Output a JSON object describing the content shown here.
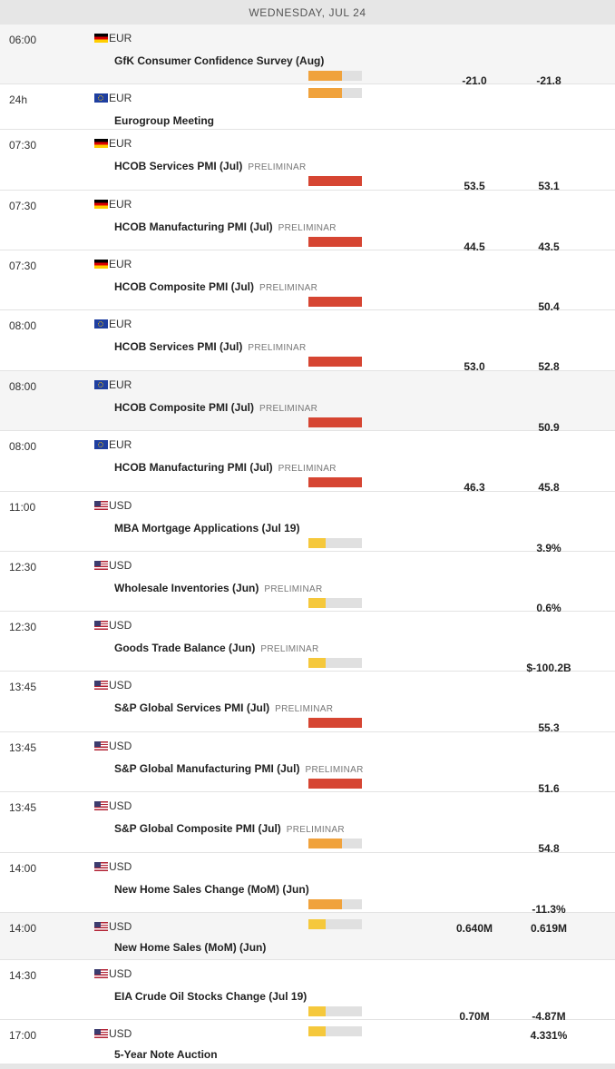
{
  "header": {
    "date": "WEDNESDAY, JUL 24"
  },
  "colors": {
    "low": "#f5c83c",
    "medium": "#f0a23c",
    "high": "#d64532",
    "track": "#e0e0e0"
  },
  "events": [
    {
      "time": "06:00",
      "flag": "de-flag-icon",
      "currency": "EUR",
      "title": "GfK Consumer Confidence Survey (Aug)",
      "tag": "",
      "impact": "medium",
      "actual": "",
      "forecast": "-21.0",
      "previous": "-21.8"
    },
    {
      "time": "24h",
      "flag": "eu-flag-icon",
      "currency": "EUR",
      "title": "Eurogroup Meeting",
      "tag": "",
      "impact": "medium",
      "actual": "",
      "forecast": "",
      "previous": ""
    },
    {
      "time": "07:30",
      "flag": "de-flag-icon",
      "currency": "EUR",
      "title": "HCOB Services PMI (Jul)",
      "tag": "PRELIMINAR",
      "impact": "high",
      "actual": "",
      "forecast": "53.5",
      "previous": "53.1"
    },
    {
      "time": "07:30",
      "flag": "de-flag-icon",
      "currency": "EUR",
      "title": "HCOB Manufacturing PMI (Jul)",
      "tag": "PRELIMINAR",
      "impact": "high",
      "actual": "",
      "forecast": "44.5",
      "previous": "43.5"
    },
    {
      "time": "07:30",
      "flag": "de-flag-icon",
      "currency": "EUR",
      "title": "HCOB Composite PMI (Jul)",
      "tag": "PRELIMINAR",
      "impact": "high",
      "actual": "",
      "forecast": "",
      "previous": "50.4"
    },
    {
      "time": "08:00",
      "flag": "eu-flag-icon",
      "currency": "EUR",
      "title": "HCOB Services PMI (Jul)",
      "tag": "PRELIMINAR",
      "impact": "high",
      "actual": "",
      "forecast": "53.0",
      "previous": "52.8"
    },
    {
      "time": "08:00",
      "flag": "eu-flag-icon",
      "currency": "EUR",
      "title": "HCOB Composite PMI (Jul)",
      "tag": "PRELIMINAR",
      "impact": "high",
      "actual": "",
      "forecast": "",
      "previous": "50.9"
    },
    {
      "time": "08:00",
      "flag": "eu-flag-icon",
      "currency": "EUR",
      "title": "HCOB Manufacturing PMI (Jul)",
      "tag": "PRELIMINAR",
      "impact": "high",
      "actual": "",
      "forecast": "46.3",
      "previous": "45.8"
    },
    {
      "time": "11:00",
      "flag": "us-flag-icon",
      "currency": "USD",
      "title": "MBA Mortgage Applications (Jul 19)",
      "tag": "",
      "impact": "low",
      "actual": "",
      "forecast": "",
      "previous": "3.9%"
    },
    {
      "time": "12:30",
      "flag": "us-flag-icon",
      "currency": "USD",
      "title": "Wholesale Inventories (Jun)",
      "tag": "PRELIMINAR",
      "impact": "low",
      "actual": "",
      "forecast": "",
      "previous": "0.6%"
    },
    {
      "time": "12:30",
      "flag": "us-flag-icon",
      "currency": "USD",
      "title": "Goods Trade Balance (Jun)",
      "tag": "PRELIMINAR",
      "impact": "low",
      "actual": "",
      "forecast": "",
      "previous": "$-100.2B"
    },
    {
      "time": "13:45",
      "flag": "us-flag-icon",
      "currency": "USD",
      "title": "S&P Global Services PMI (Jul)",
      "tag": "PRELIMINAR",
      "impact": "high",
      "actual": "",
      "forecast": "",
      "previous": "55.3"
    },
    {
      "time": "13:45",
      "flag": "us-flag-icon",
      "currency": "USD",
      "title": "S&P Global Manufacturing PMI (Jul)",
      "tag": "PRELIMINAR",
      "impact": "high",
      "actual": "",
      "forecast": "",
      "previous": "51.6"
    },
    {
      "time": "13:45",
      "flag": "us-flag-icon",
      "currency": "USD",
      "title": "S&P Global Composite PMI (Jul)",
      "tag": "PRELIMINAR",
      "impact": "medium",
      "actual": "",
      "forecast": "",
      "previous": "54.8"
    },
    {
      "time": "14:00",
      "flag": "us-flag-icon",
      "currency": "USD",
      "title": "New Home Sales Change (MoM) (Jun)",
      "tag": "",
      "impact": "medium",
      "actual": "",
      "forecast": "",
      "previous": "-11.3%"
    },
    {
      "time": "14:00",
      "flag": "us-flag-icon",
      "currency": "USD",
      "title": "New Home Sales (MoM) (Jun)",
      "tag": "",
      "impact": "low",
      "actual": "",
      "forecast": "0.640M",
      "previous": "0.619M"
    },
    {
      "time": "14:30",
      "flag": "us-flag-icon",
      "currency": "USD",
      "title": "EIA Crude Oil Stocks Change (Jul 19)",
      "tag": "",
      "impact": "low",
      "actual": "",
      "forecast": "0.70M",
      "previous": "-4.87M"
    },
    {
      "time": "17:00",
      "flag": "us-flag-icon",
      "currency": "USD",
      "title": "5-Year Note Auction",
      "tag": "",
      "impact": "low",
      "actual": "",
      "forecast": "",
      "previous": "4.331%"
    }
  ]
}
